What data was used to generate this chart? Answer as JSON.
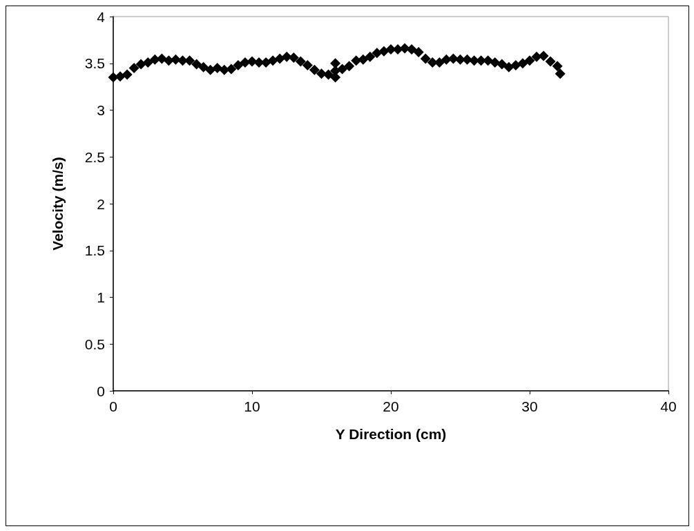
{
  "chart_data": {
    "type": "scatter",
    "xlabel": "Y Direction (cm)",
    "ylabel": "Velocity (m/s)",
    "xlim": [
      0,
      40
    ],
    "xticks": [
      0,
      10,
      20,
      30,
      40
    ],
    "ylim": [
      0,
      4
    ],
    "yticks": [
      0,
      0.5,
      1,
      1.5,
      2,
      2.5,
      3,
      3.5,
      4
    ],
    "grid": false,
    "marker": "diamond",
    "series": [
      {
        "color": "#000000",
        "x": [
          0,
          0.5,
          1,
          1.5,
          2,
          2.5,
          3,
          3.5,
          4,
          4.5,
          5,
          5.5,
          6,
          6.5,
          7,
          7.5,
          8,
          8.5,
          9,
          9.5,
          10,
          10.5,
          11,
          11.5,
          12,
          12.5,
          13,
          13.5,
          14,
          14.5,
          15,
          15.5,
          16,
          16,
          16,
          16.5,
          17,
          17.5,
          18,
          18.5,
          19,
          19.5,
          20,
          20.5,
          21,
          21.5,
          22,
          22.5,
          23,
          23.5,
          24,
          24.5,
          25,
          25.5,
          26,
          26.5,
          27,
          27.5,
          28,
          28.5,
          29,
          29.5,
          30,
          30.5,
          31,
          31.5,
          32,
          32.2
        ],
        "values": [
          3.35,
          3.36,
          3.38,
          3.45,
          3.49,
          3.51,
          3.54,
          3.55,
          3.53,
          3.54,
          3.53,
          3.53,
          3.49,
          3.46,
          3.43,
          3.45,
          3.43,
          3.44,
          3.48,
          3.51,
          3.52,
          3.51,
          3.51,
          3.53,
          3.55,
          3.57,
          3.56,
          3.52,
          3.48,
          3.43,
          3.39,
          3.38,
          3.5,
          3.35,
          3.42,
          3.44,
          3.47,
          3.53,
          3.54,
          3.57,
          3.61,
          3.63,
          3.65,
          3.65,
          3.66,
          3.65,
          3.62,
          3.55,
          3.51,
          3.51,
          3.54,
          3.55,
          3.54,
          3.54,
          3.53,
          3.53,
          3.53,
          3.51,
          3.49,
          3.46,
          3.48,
          3.5,
          3.53,
          3.57,
          3.58,
          3.52,
          3.47,
          3.39
        ]
      }
    ]
  }
}
